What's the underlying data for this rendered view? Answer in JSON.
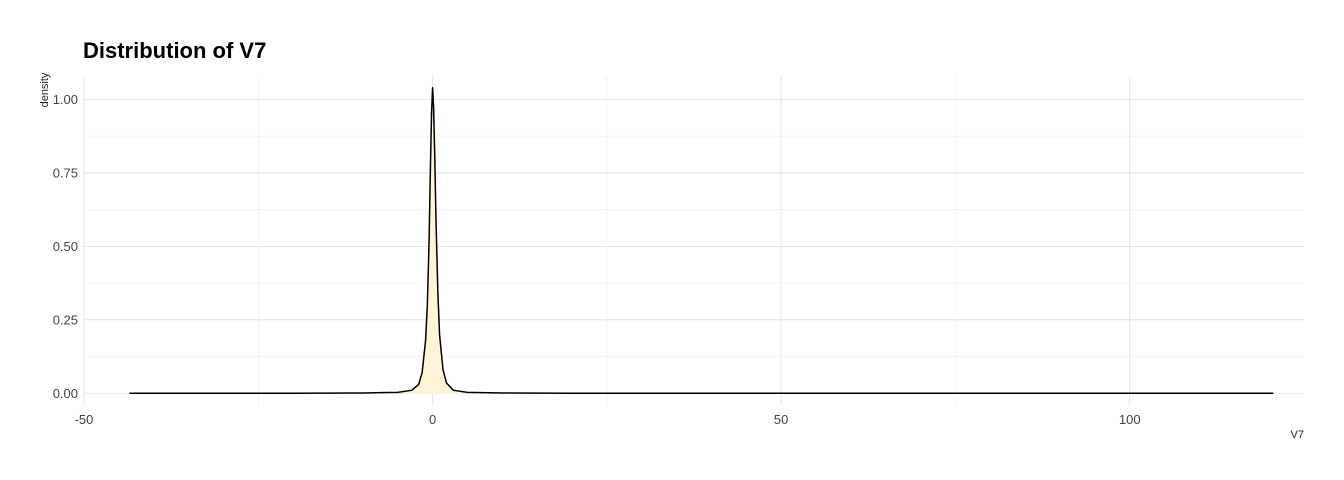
{
  "chart_data": {
    "type": "area",
    "title": "Distribution of V7",
    "xlabel": "V7",
    "ylabel": "density",
    "xlim": [
      -50,
      125
    ],
    "ylim": [
      -0.04,
      1.08
    ],
    "x_ticks": [
      -50,
      0,
      50,
      100
    ],
    "x_tick_labels": [
      "-50",
      "0",
      "50",
      "100"
    ],
    "y_ticks": [
      0,
      0.25,
      0.5,
      0.75,
      1.0
    ],
    "y_tick_labels": [
      "0.00",
      "0.25",
      "0.50",
      "0.75",
      "1.00"
    ],
    "grid": true,
    "legend": "none",
    "fill_color": "#fff5d6",
    "line_color": "#000000",
    "series": [
      {
        "x": [
          -43.5,
          -20,
          -10,
          -5,
          -3,
          -2,
          -1.5,
          -1,
          -0.75,
          -0.5,
          -0.3,
          -0.15,
          0,
          0.15,
          0.3,
          0.5,
          0.75,
          1,
          1.5,
          2,
          3,
          5,
          10,
          20,
          50,
          120.6
        ],
        "y": [
          0,
          0,
          0.001,
          0.003,
          0.01,
          0.03,
          0.07,
          0.18,
          0.3,
          0.52,
          0.78,
          0.95,
          1.04,
          0.97,
          0.82,
          0.58,
          0.35,
          0.2,
          0.08,
          0.035,
          0.01,
          0.003,
          0.001,
          0,
          0,
          0
        ]
      }
    ]
  }
}
